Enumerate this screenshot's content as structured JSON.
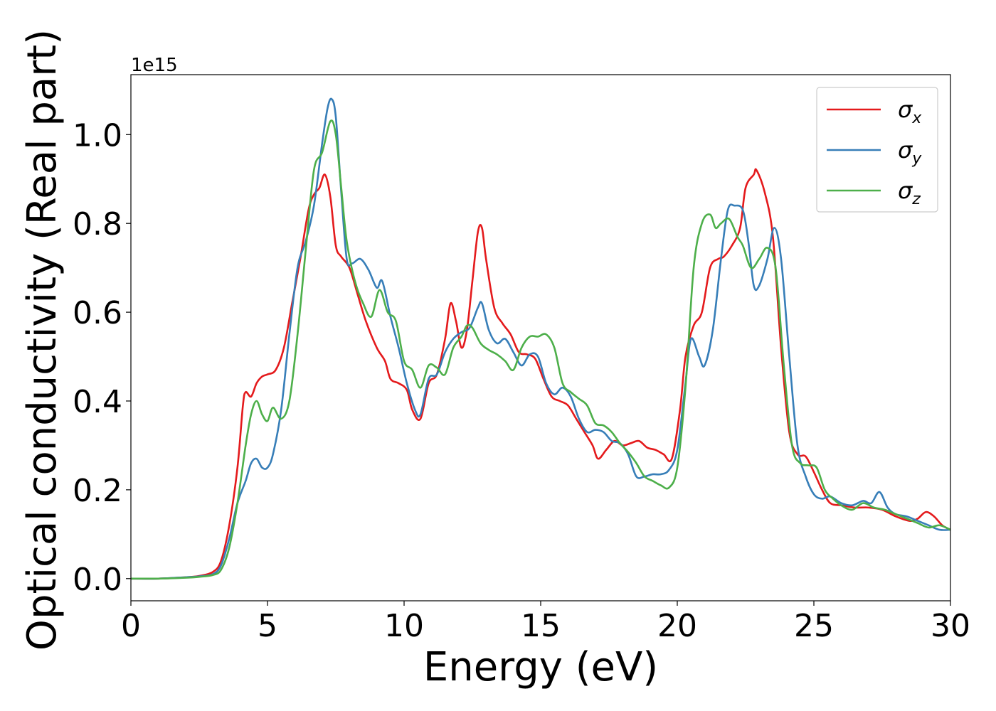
{
  "chart_data": {
    "type": "line",
    "xlabel": "Energy (eV)",
    "ylabel": "Optical conductivity (Real part)",
    "y_offset_label": "1e15",
    "xlim": [
      0,
      30
    ],
    "ylim": [
      -0.05,
      1.135
    ],
    "x_ticks": [
      0,
      5,
      10,
      15,
      20,
      25,
      30
    ],
    "x_tick_labels": [
      "0",
      "5",
      "10",
      "15",
      "20",
      "25",
      "30"
    ],
    "y_ticks": [
      0.0,
      0.2,
      0.4,
      0.6,
      0.8,
      1.0
    ],
    "y_tick_labels": [
      "0.0",
      "0.2",
      "0.4",
      "0.6",
      "0.8",
      "1.0"
    ],
    "grid": false,
    "legend": "top-right",
    "series": [
      {
        "name": "σ",
        "subscript": "x",
        "color": "#e41a1c",
        "x": [
          0,
          1,
          2,
          2.5,
          3,
          3.3,
          3.6,
          3.9,
          4.1,
          4.2,
          4.4,
          4.6,
          4.8,
          5.0,
          5.3,
          5.6,
          5.9,
          6.2,
          6.5,
          6.7,
          6.9,
          7.1,
          7.3,
          7.5,
          7.7,
          8.0,
          8.3,
          8.6,
          9.0,
          9.3,
          9.5,
          9.8,
          10.1,
          10.3,
          10.6,
          10.9,
          11.2,
          11.5,
          11.7,
          11.9,
          12.1,
          12.3,
          12.5,
          12.7,
          12.85,
          13.0,
          13.3,
          13.6,
          13.9,
          14.2,
          14.5,
          14.8,
          15.1,
          15.4,
          15.7,
          16.0,
          16.3,
          16.6,
          16.9,
          17.1,
          17.4,
          17.7,
          18.0,
          18.3,
          18.6,
          18.9,
          19.2,
          19.5,
          19.8,
          20.1,
          20.3,
          20.6,
          20.9,
          21.2,
          21.5,
          21.7,
          22.0,
          22.3,
          22.5,
          22.8,
          22.9,
          23.2,
          23.5,
          23.8,
          24.1,
          24.4,
          24.7,
          25.0,
          25.3,
          25.6,
          26.0,
          26.5,
          27.0,
          27.5,
          28.0,
          28.5,
          28.8,
          29.1,
          29.4,
          29.7,
          30.0
        ],
        "y": [
          0,
          0,
          0.003,
          0.006,
          0.015,
          0.04,
          0.12,
          0.25,
          0.39,
          0.42,
          0.41,
          0.44,
          0.455,
          0.46,
          0.47,
          0.52,
          0.62,
          0.72,
          0.83,
          0.865,
          0.88,
          0.91,
          0.86,
          0.75,
          0.725,
          0.7,
          0.64,
          0.58,
          0.52,
          0.49,
          0.45,
          0.44,
          0.425,
          0.38,
          0.36,
          0.44,
          0.46,
          0.54,
          0.62,
          0.58,
          0.52,
          0.56,
          0.67,
          0.78,
          0.79,
          0.72,
          0.61,
          0.575,
          0.55,
          0.51,
          0.505,
          0.495,
          0.45,
          0.41,
          0.4,
          0.39,
          0.36,
          0.33,
          0.3,
          0.27,
          0.29,
          0.31,
          0.3,
          0.305,
          0.31,
          0.295,
          0.29,
          0.28,
          0.27,
          0.38,
          0.5,
          0.57,
          0.6,
          0.7,
          0.72,
          0.725,
          0.75,
          0.79,
          0.88,
          0.91,
          0.92,
          0.87,
          0.77,
          0.52,
          0.33,
          0.28,
          0.275,
          0.24,
          0.2,
          0.17,
          0.165,
          0.16,
          0.16,
          0.155,
          0.14,
          0.13,
          0.135,
          0.15,
          0.14,
          0.12,
          0.11
        ]
      },
      {
        "name": "σ",
        "subscript": "y",
        "color": "#377eb8",
        "x": [
          0,
          1,
          2,
          2.5,
          3,
          3.3,
          3.6,
          3.9,
          4.2,
          4.4,
          4.6,
          4.8,
          5.0,
          5.2,
          5.5,
          5.8,
          6.1,
          6.4,
          6.7,
          7.0,
          7.2,
          7.35,
          7.5,
          7.7,
          7.9,
          8.1,
          8.4,
          8.7,
          9.0,
          9.2,
          9.5,
          9.8,
          10.1,
          10.4,
          10.6,
          10.9,
          11.2,
          11.5,
          11.8,
          12.1,
          12.4,
          12.7,
          12.85,
          13.1,
          13.4,
          13.7,
          14.0,
          14.3,
          14.6,
          14.9,
          15.2,
          15.5,
          15.8,
          16.1,
          16.4,
          16.7,
          17.0,
          17.3,
          17.6,
          17.9,
          18.2,
          18.5,
          18.8,
          19.1,
          19.4,
          19.7,
          20.0,
          20.3,
          20.5,
          20.8,
          21.0,
          21.3,
          21.6,
          21.85,
          22.1,
          22.4,
          22.6,
          22.8,
          23.0,
          23.3,
          23.55,
          23.8,
          24.1,
          24.4,
          24.7,
          25.0,
          25.3,
          25.6,
          26.0,
          26.4,
          26.8,
          27.1,
          27.4,
          27.7,
          28.0,
          28.4,
          28.8,
          29.2,
          29.6,
          30.0
        ],
        "y": [
          0,
          0,
          0.003,
          0.005,
          0.01,
          0.03,
          0.09,
          0.17,
          0.22,
          0.26,
          0.27,
          0.25,
          0.25,
          0.28,
          0.38,
          0.55,
          0.7,
          0.76,
          0.84,
          0.98,
          1.06,
          1.08,
          1.04,
          0.87,
          0.72,
          0.71,
          0.72,
          0.695,
          0.655,
          0.67,
          0.59,
          0.52,
          0.44,
          0.38,
          0.37,
          0.45,
          0.46,
          0.51,
          0.54,
          0.555,
          0.565,
          0.61,
          0.62,
          0.56,
          0.53,
          0.54,
          0.51,
          0.48,
          0.505,
          0.5,
          0.44,
          0.415,
          0.43,
          0.41,
          0.36,
          0.33,
          0.335,
          0.33,
          0.31,
          0.305,
          0.28,
          0.23,
          0.23,
          0.235,
          0.235,
          0.245,
          0.29,
          0.44,
          0.54,
          0.5,
          0.48,
          0.56,
          0.72,
          0.83,
          0.84,
          0.83,
          0.76,
          0.66,
          0.66,
          0.72,
          0.79,
          0.72,
          0.5,
          0.3,
          0.23,
          0.19,
          0.18,
          0.185,
          0.17,
          0.165,
          0.175,
          0.17,
          0.195,
          0.16,
          0.145,
          0.14,
          0.13,
          0.12,
          0.11,
          0.11
        ]
      },
      {
        "name": "σ",
        "subscript": "z",
        "color": "#4daf4a",
        "x": [
          0,
          1,
          2,
          2.5,
          3,
          3.3,
          3.6,
          3.9,
          4.2,
          4.4,
          4.6,
          4.8,
          5.0,
          5.2,
          5.5,
          5.8,
          6.1,
          6.4,
          6.7,
          7.0,
          7.3,
          7.5,
          7.7,
          7.9,
          8.2,
          8.5,
          8.8,
          9.1,
          9.4,
          9.7,
          10.0,
          10.3,
          10.6,
          10.9,
          11.2,
          11.5,
          11.8,
          12.1,
          12.3,
          12.5,
          12.8,
          13.1,
          13.4,
          13.7,
          14.0,
          14.3,
          14.6,
          14.9,
          15.2,
          15.5,
          15.8,
          16.1,
          16.4,
          16.7,
          17.0,
          17.3,
          17.6,
          17.9,
          18.2,
          18.5,
          18.8,
          19.1,
          19.4,
          19.7,
          20.0,
          20.3,
          20.6,
          20.9,
          21.2,
          21.4,
          21.6,
          21.9,
          22.2,
          22.4,
          22.7,
          23.0,
          23.3,
          23.6,
          23.9,
          24.2,
          24.5,
          24.8,
          25.1,
          25.4,
          25.7,
          26.0,
          26.4,
          26.8,
          27.2,
          27.6,
          28.0,
          28.4,
          28.8,
          29.2,
          29.6,
          30.0
        ],
        "y": [
          0,
          0,
          0.002,
          0.004,
          0.008,
          0.02,
          0.07,
          0.17,
          0.3,
          0.37,
          0.4,
          0.37,
          0.355,
          0.385,
          0.36,
          0.4,
          0.55,
          0.74,
          0.92,
          0.96,
          1.03,
          1.0,
          0.88,
          0.76,
          0.67,
          0.62,
          0.59,
          0.65,
          0.6,
          0.58,
          0.49,
          0.47,
          0.43,
          0.48,
          0.475,
          0.46,
          0.52,
          0.545,
          0.57,
          0.565,
          0.53,
          0.515,
          0.505,
          0.49,
          0.47,
          0.52,
          0.545,
          0.545,
          0.55,
          0.52,
          0.44,
          0.42,
          0.405,
          0.39,
          0.35,
          0.345,
          0.33,
          0.305,
          0.285,
          0.26,
          0.23,
          0.22,
          0.21,
          0.205,
          0.25,
          0.43,
          0.7,
          0.8,
          0.82,
          0.79,
          0.8,
          0.81,
          0.77,
          0.75,
          0.7,
          0.72,
          0.745,
          0.7,
          0.48,
          0.3,
          0.26,
          0.255,
          0.25,
          0.2,
          0.18,
          0.165,
          0.155,
          0.17,
          0.16,
          0.155,
          0.145,
          0.135,
          0.125,
          0.115,
          0.12,
          0.11
        ]
      }
    ]
  }
}
